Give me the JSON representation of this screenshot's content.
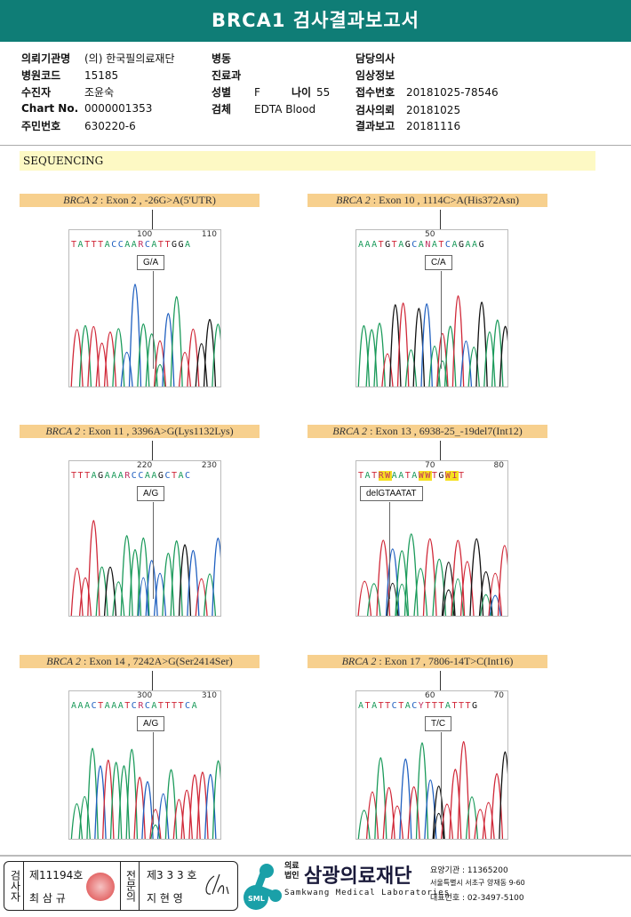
{
  "title": "BRCA1 검사결과보고서",
  "info": {
    "col1": [
      {
        "label": "의뢰기관명",
        "value": "(의) 한국필의료재단"
      },
      {
        "label": "병원코드",
        "value": "15185"
      },
      {
        "label": "수진자",
        "value": "조윤숙"
      },
      {
        "label": "Chart No.",
        "value": "0000001353"
      },
      {
        "label": "주민번호",
        "value": "630220-6"
      }
    ],
    "col2": [
      {
        "label": "병동",
        "value": ""
      },
      {
        "label": "진료과",
        "value": ""
      },
      {
        "label": "성별",
        "value": "F"
      },
      {
        "label": "검체",
        "value": "EDTA Blood"
      }
    ],
    "age": {
      "label": "나이",
      "value": "55"
    },
    "col3": [
      {
        "label": "담당의사",
        "value": ""
      },
      {
        "label": "임상정보",
        "value": ""
      },
      {
        "label": "접수번호",
        "value": "20181025-78546"
      },
      {
        "label": "검사의뢰",
        "value": "20181025"
      },
      {
        "label": "결과보고",
        "value": "20181116"
      }
    ]
  },
  "section": "SEQUENCING",
  "panels": [
    {
      "gene": "BRCA 2",
      "desc": " : Exon 2 , -26G>A(5'UTR)",
      "pos1": "100",
      "pos2": "110",
      "calls": "TATTTACCAARCATTGGA",
      "mutation": "G/A"
    },
    {
      "gene": "BRCA 2",
      "desc": " : Exon 10 , 1114C>A(His372Asn)",
      "pos1": "50",
      "pos2": "",
      "calls": "AAATGTAGCANATCAGAAG",
      "mutation": "C/A"
    },
    {
      "gene": "BRCA 2",
      "desc": " : Exon 11 , 3396A>G(Lys1132Lys)",
      "pos1": "220",
      "pos2": "230",
      "calls": "TTTAGAAARCCAAGCTAC",
      "mutation": "A/G"
    },
    {
      "gene": "BRCA 2",
      "desc": " : Exon 13 , 6938-25_-19del7(Int12)",
      "pos1": "70",
      "pos2": "80",
      "calls": "TATRWAATAWWTGWIT",
      "mutation": "delGTAATAT"
    },
    {
      "gene": "BRCA 2",
      "desc": " : Exon 14 , 7242A>G(Ser2414Ser)",
      "pos1": "300",
      "pos2": "310",
      "calls": "AAACTAAATCRCATTTTCA",
      "mutation": "A/G"
    },
    {
      "gene": "BRCA 2",
      "desc": " : Exon 17 , 7806-14T>C(Int16)",
      "pos1": "60",
      "pos2": "70",
      "calls": "ATATTCTACYTTTATTTG",
      "mutation": "T/C"
    }
  ],
  "footer": {
    "examiner_label": "검사자",
    "examiner_no": "제11194호",
    "examiner_name": "최 삼 규",
    "specialist_label": "전문의",
    "specialist_no": "제3 3 3 호",
    "specialist_name": "지 현 영",
    "logo_text": "SML",
    "corp_prefix": "의료법인",
    "org_name": "삼광의료재단",
    "org_en": "Samkwang Medical Laboratories",
    "code": "요양기관 : 11365200",
    "address": "서울특별시 서초구 양재동 9-60",
    "phone": "대표번호 : 02-3497-5100"
  },
  "colors": {
    "header": "#0f7d76",
    "A": "#1a9a5a",
    "T": "#d02838",
    "C": "#2060c0",
    "G": "#111111"
  }
}
